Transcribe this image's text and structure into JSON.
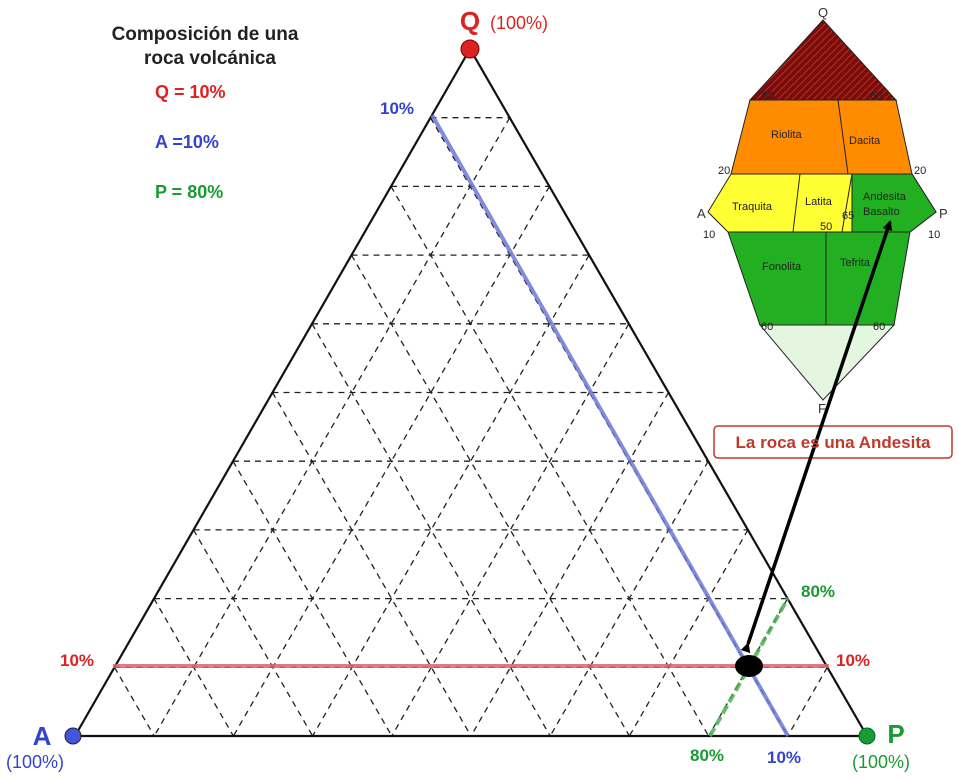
{
  "title": {
    "line1": "Composición de una",
    "line2": "roca volcánica"
  },
  "composition": {
    "q": "Q = 10%",
    "a": "A =10%",
    "p": "P = 80%"
  },
  "vertices": {
    "q": {
      "label": "Q",
      "pct": "(100%)"
    },
    "a": {
      "label": "A",
      "pct": "(100%)"
    },
    "p": {
      "label": "P",
      "pct": "(100%)"
    }
  },
  "line_labels": {
    "a_top": "10%",
    "a_bottom": "10%",
    "q_left": "10%",
    "q_right": "10%",
    "p_top": "80%",
    "p_bottom": "80%"
  },
  "sample_point": {
    "Q": 10,
    "A": 10,
    "P": 80
  },
  "result": "La roca es una Andesita",
  "mini_diagram": {
    "vertices": {
      "q": "Q",
      "a": "A",
      "p": "P",
      "f": "F"
    },
    "regions": {
      "riolita": "Riolita",
      "dacita": "Dacita",
      "traquita": "Traquita",
      "latita": "Latita",
      "andesita_1": "Andesita",
      "andesita_2": "Basalto",
      "fonolita": "Fonolita",
      "tefrita": "Tefrita"
    },
    "ticks": {
      "t60a": "60",
      "t60b": "60",
      "t20a": "20",
      "t20b": "20",
      "t10a": "10",
      "t10b": "10",
      "t60c": "60",
      "t60d": "60",
      "t65": "65",
      "t50": "50"
    }
  },
  "colors": {
    "q": "#dd2222",
    "a": "#3344cc",
    "p": "#1a9a33",
    "q_line": "#e06070",
    "a_line": "#6a78d6",
    "p_line": "#4caf50",
    "riolita": "#ff8c00",
    "traquita": "#ffff33",
    "andesita": "#22b022",
    "summit": "#7a0c0c",
    "foid": "#e4f6e0"
  }
}
